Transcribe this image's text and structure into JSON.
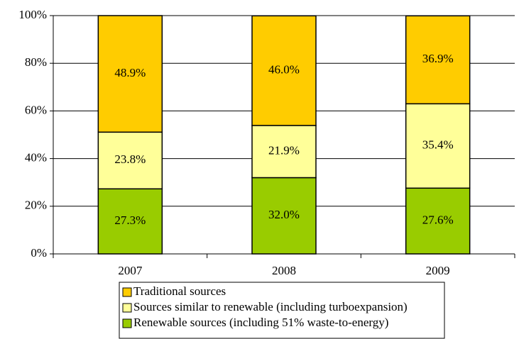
{
  "chart_data": {
    "type": "stacked_bar",
    "categories": [
      "2007",
      "2008",
      "2009"
    ],
    "series": [
      {
        "name": "Renewable sources (including 51% waste-to-energy)",
        "color": "#99cc00",
        "values": [
          27.3,
          32.0,
          27.6
        ],
        "value_labels": [
          "27.3%",
          "32.0%",
          "27.6%"
        ]
      },
      {
        "name": "Sources similar to renewable (including turboexpansion)",
        "color": "#ffff99",
        "values": [
          23.8,
          21.9,
          35.4
        ],
        "value_labels": [
          "23.8%",
          "21.9%",
          "35.4%"
        ]
      },
      {
        "name": "Traditional sources",
        "color": "#ffcc00",
        "values": [
          48.9,
          46.0,
          36.9
        ],
        "value_labels": [
          "48.9%",
          "46.0%",
          "36.9%"
        ]
      }
    ],
    "ylim": [
      0,
      100
    ],
    "yticks": [
      {
        "value": 0,
        "label": "0%"
      },
      {
        "value": 20,
        "label": "20%"
      },
      {
        "value": 40,
        "label": "40%"
      },
      {
        "value": 60,
        "label": "60%"
      },
      {
        "value": 80,
        "label": "80%"
      },
      {
        "value": 100,
        "label": "100%"
      }
    ],
    "grid": true
  }
}
